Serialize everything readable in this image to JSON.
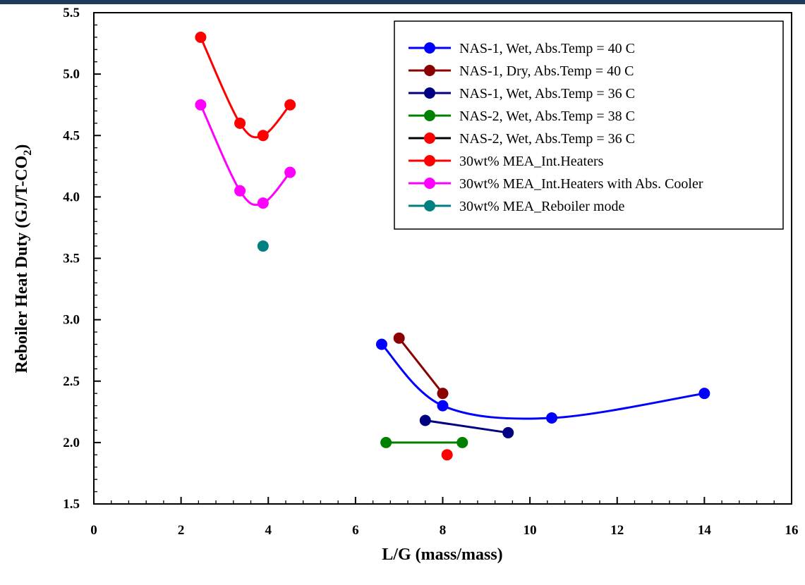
{
  "chart_data": {
    "type": "scatter",
    "title": "",
    "xlabel": "L/G (mass/mass)",
    "ylabel": "Reboiler Heat Duty (GJ/T-CO",
    "ylabel_subscript": "2",
    "ylabel_suffix": ")",
    "xlim": [
      0,
      16
    ],
    "ylim": [
      1.5,
      5.5
    ],
    "xticks": [
      0,
      2,
      4,
      6,
      8,
      10,
      12,
      14,
      16
    ],
    "yticks": [
      1.5,
      2.0,
      2.5,
      3.0,
      3.5,
      4.0,
      4.5,
      5.0,
      5.5
    ],
    "ytick_labels": [
      "1.5",
      "2.0",
      "2.5",
      "3.0",
      "3.5",
      "4.0",
      "4.5",
      "5.0",
      "5.5"
    ],
    "grid": false,
    "legend_position": "top-right",
    "series": [
      {
        "name": "NAS-1, Wet, Abs.Temp = 40 C",
        "color": "#0000ff",
        "curve": "smooth",
        "x": [
          6.6,
          8.0,
          10.5,
          14.0
        ],
        "y": [
          2.8,
          2.3,
          2.2,
          2.4
        ]
      },
      {
        "name": "NAS-1, Dry, Abs.Temp = 40 C",
        "color": "#8b0000",
        "curve": "straight",
        "x": [
          7.0,
          8.0
        ],
        "y": [
          2.85,
          2.4
        ]
      },
      {
        "name": "NAS-1, Wet, Abs.Temp = 36 C",
        "color": "#000080",
        "curve": "straight",
        "x": [
          7.6,
          9.5
        ],
        "y": [
          2.18,
          2.08
        ]
      },
      {
        "name": "NAS-2, Wet, Abs.Temp = 38 C",
        "color": "#008000",
        "curve": "straight",
        "x": [
          6.7,
          8.45
        ],
        "y": [
          2.0,
          2.0
        ]
      },
      {
        "name": "NAS-2, Wet, Abs.Temp = 36 C",
        "color": "#ff0000",
        "curve": "none",
        "line_color": "#000000",
        "x": [
          8.1
        ],
        "y": [
          1.9
        ]
      },
      {
        "name": "30wt% MEA_Int.Heaters",
        "color": "#ff0000",
        "curve": "smooth",
        "x": [
          2.45,
          3.35,
          3.88,
          4.5
        ],
        "y": [
          5.3,
          4.6,
          4.5,
          4.75
        ]
      },
      {
        "name": "30wt% MEA_Int.Heaters with Abs. Cooler",
        "color": "#ff00ff",
        "curve": "smooth",
        "x": [
          2.45,
          3.35,
          3.88,
          4.5
        ],
        "y": [
          4.75,
          4.05,
          3.95,
          4.2
        ]
      },
      {
        "name": "30wt% MEA_Reboiler mode",
        "color": "#008080",
        "curve": "none",
        "x": [
          3.88
        ],
        "y": [
          3.6
        ]
      }
    ]
  }
}
